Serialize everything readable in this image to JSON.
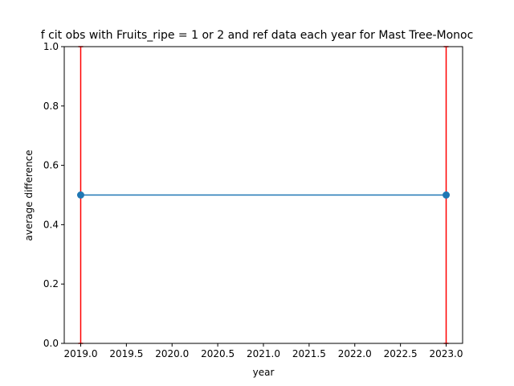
{
  "chart_data": {
    "type": "line",
    "title": "f cit obs with Fruits_ripe = 1 or 2 and ref data each year for Mast Tree-Monoc",
    "xlabel": "year",
    "ylabel": "average difference",
    "xlim": [
      2018.82,
      2023.18
    ],
    "ylim": [
      0.0,
      1.0
    ],
    "xticks": [
      2019.0,
      2019.5,
      2020.0,
      2020.5,
      2021.0,
      2021.5,
      2022.0,
      2022.5,
      2023.0
    ],
    "xtick_labels": [
      "2019.0",
      "2019.5",
      "2020.0",
      "2020.5",
      "2021.0",
      "2021.5",
      "2022.0",
      "2022.5",
      "2023.0"
    ],
    "yticks": [
      0.0,
      0.2,
      0.4,
      0.6,
      0.8,
      1.0
    ],
    "ytick_labels": [
      "0.0",
      "0.2",
      "0.4",
      "0.6",
      "0.8",
      "1.0"
    ],
    "grid": false,
    "series": [
      {
        "x": [
          2019,
          2023
        ],
        "y": [
          0.5,
          0.5
        ],
        "yerr": [
          0.5,
          0.5
        ],
        "color": "#1f77b4",
        "error_color": "#ff0000",
        "marker": "circle"
      }
    ]
  }
}
